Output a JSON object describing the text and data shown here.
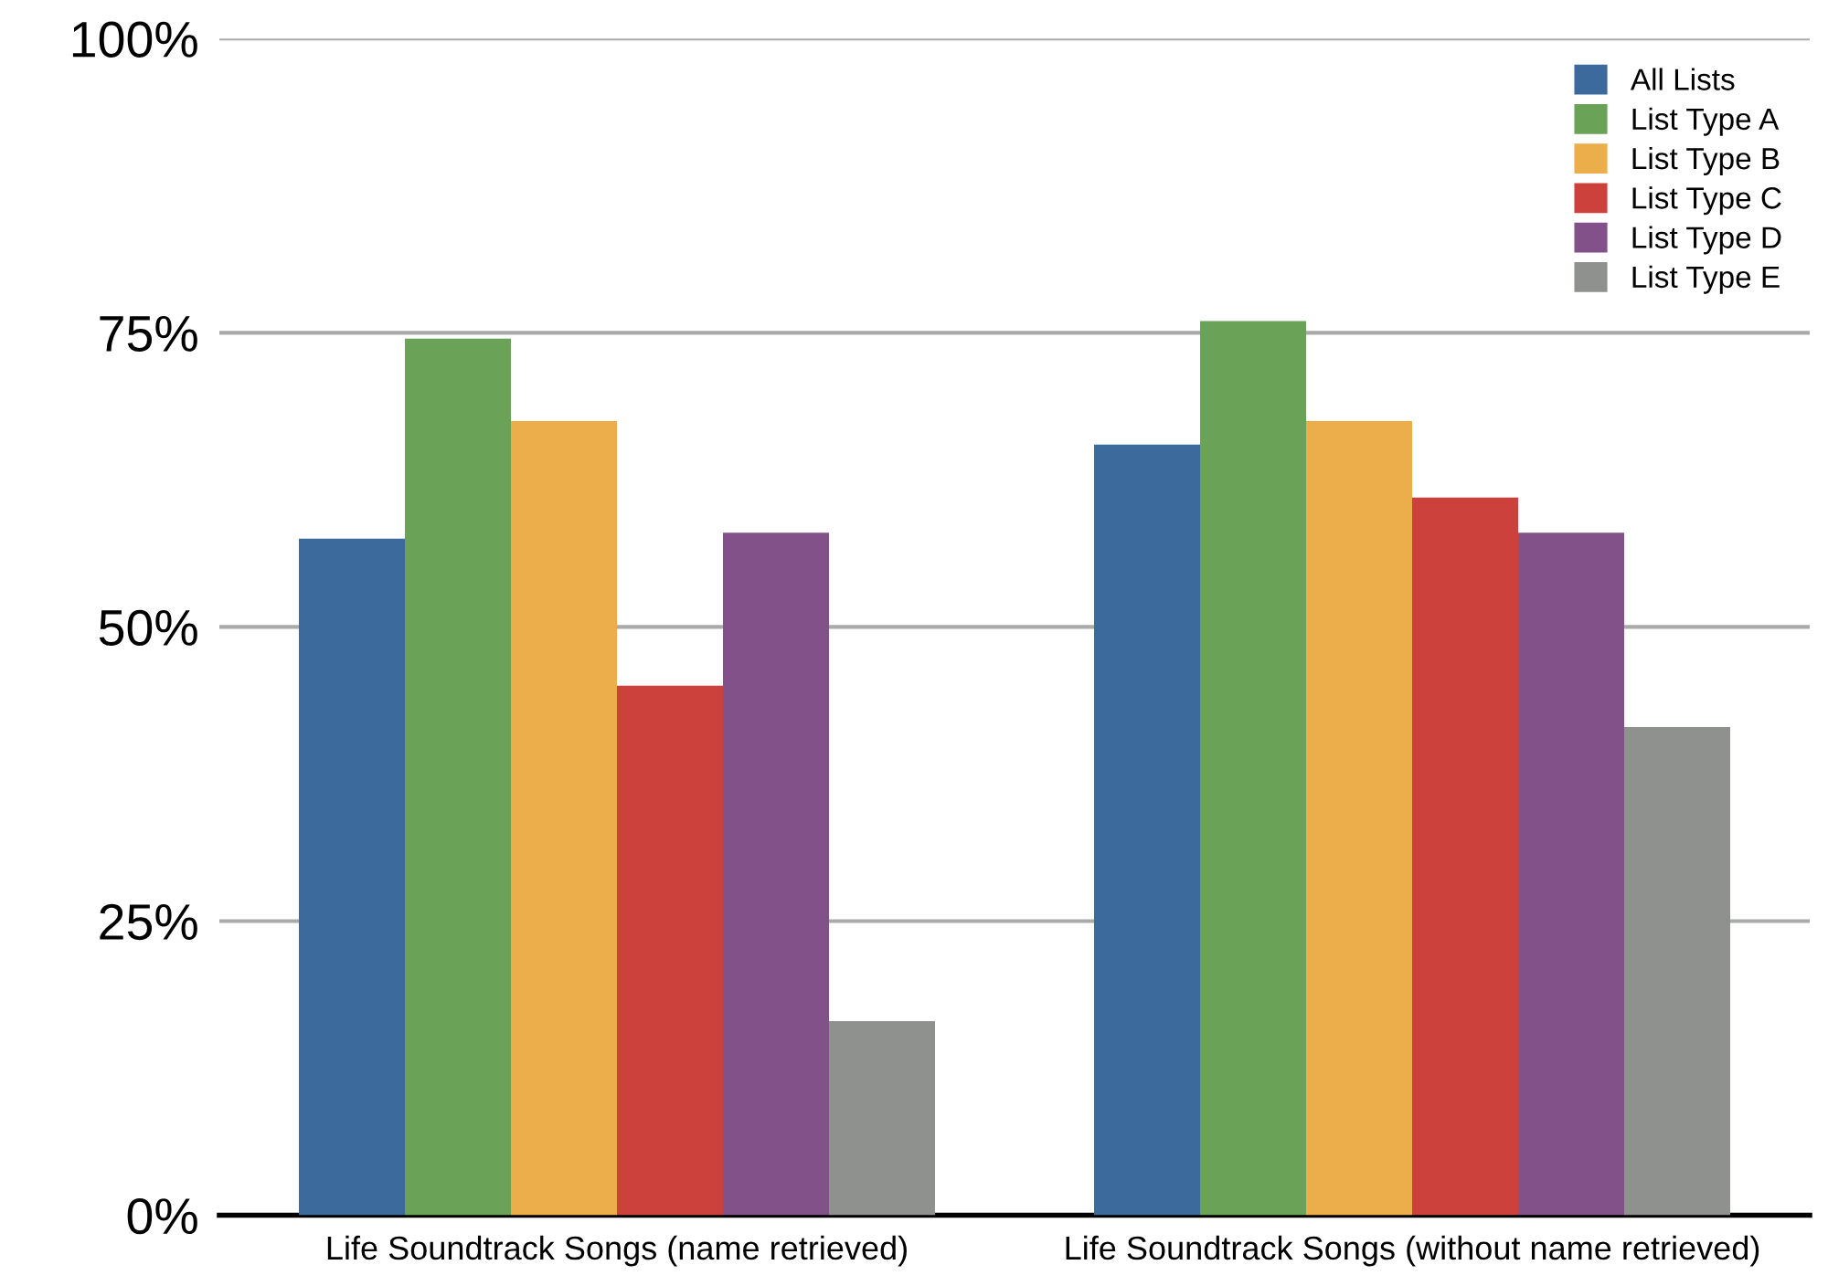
{
  "chart_data": {
    "type": "bar",
    "categories": [
      "Life Soundtrack Songs (name retrieved)",
      "Life Soundtrack Songs (without name retrieved)"
    ],
    "series": [
      {
        "name": "All Lists",
        "color": "#3c6a9c",
        "values": [
          57.5,
          65.5
        ]
      },
      {
        "name": "List Type A",
        "color": "#6aa357",
        "values": [
          74.5,
          76
        ]
      },
      {
        "name": "List Type B",
        "color": "#ecae4b",
        "values": [
          67.5,
          67.5
        ]
      },
      {
        "name": "List Type C",
        "color": "#cc413c",
        "values": [
          45,
          61
        ]
      },
      {
        "name": "List Type D",
        "color": "#825189",
        "values": [
          58,
          58
        ]
      },
      {
        "name": "List Type E",
        "color": "#8f918f",
        "values": [
          16.5,
          41.5
        ]
      }
    ],
    "ylim": [
      0,
      100
    ],
    "yticks": [
      {
        "value": 0,
        "label": "0%"
      },
      {
        "value": 25,
        "label": "25%"
      },
      {
        "value": 50,
        "label": "50%"
      },
      {
        "value": 75,
        "label": "75%"
      },
      {
        "value": 100,
        "label": "100%"
      }
    ],
    "grid": "y",
    "legend": "top right"
  }
}
